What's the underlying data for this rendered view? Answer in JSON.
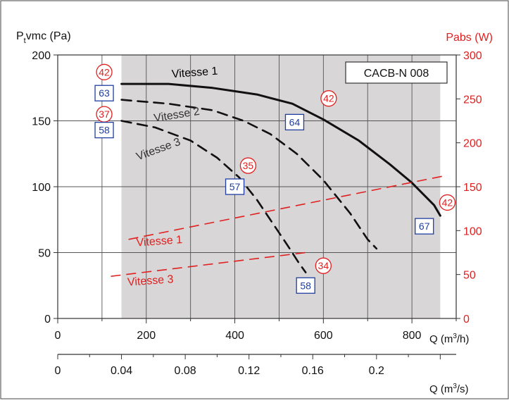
{
  "chart_data": {
    "type": "line",
    "title": "CACB-N 008",
    "left_axis": {
      "label_main": "P",
      "label_sub": "t",
      "label_rest": "vmc (Pa)",
      "range": [
        0,
        200
      ],
      "ticks": [
        "0",
        "50",
        "100",
        "150",
        "200"
      ]
    },
    "right_axis": {
      "label": "Pabs (W)",
      "range": [
        0,
        300
      ],
      "ticks": [
        "0",
        "50",
        "100",
        "150",
        "200",
        "250",
        "300"
      ],
      "color": "#e02020"
    },
    "x_axis_m3h": {
      "label_pre": "Q (m",
      "label_sup": "3",
      "label_post": "/h)",
      "range": [
        0,
        900
      ],
      "ticks": [
        "0",
        "200",
        "400",
        "600",
        "800"
      ],
      "values": [
        0,
        200,
        400,
        600,
        800
      ]
    },
    "x_axis_m3s": {
      "label_pre": "Q (m",
      "label_sup": "3",
      "label_post": "/s)",
      "ticks": [
        "0",
        "0.04",
        "0.08",
        "0.12",
        "0.16",
        "0.2"
      ],
      "values": [
        0,
        0.04,
        0.08,
        0.12,
        0.16,
        0.2
      ]
    },
    "shaded_range_m3h": [
      144,
      864
    ],
    "pressure_series": [
      {
        "name": "Vitesse 1",
        "style": "solid",
        "x": [
          144,
          250,
          350,
          450,
          530,
          600,
          680,
          750,
          800,
          850,
          864
        ],
        "y": [
          178,
          178,
          175,
          170,
          163,
          151,
          135,
          117,
          103,
          86,
          78
        ]
      },
      {
        "name": "Vitesse 2",
        "style": "dashed",
        "x": [
          144,
          250,
          350,
          420,
          480,
          540,
          600,
          660,
          700,
          720
        ],
        "y": [
          166,
          163,
          158,
          150,
          140,
          125,
          105,
          80,
          60,
          53
        ]
      },
      {
        "name": "Vitesse 3",
        "style": "dashed",
        "x": [
          144,
          220,
          300,
          360,
          410,
          450,
          490,
          520,
          545,
          560
        ],
        "y": [
          150,
          145,
          135,
          122,
          107,
          90,
          70,
          55,
          42,
          35
        ]
      }
    ],
    "power_series": [
      {
        "name": "Vitesse 1",
        "x": [
          160,
          870
        ],
        "y_w": [
          90,
          162
        ],
        "color": "#e02020"
      },
      {
        "name": "Vitesse 3",
        "x": [
          120,
          560
        ],
        "y_w": [
          48,
          75
        ],
        "color": "#e02020"
      }
    ],
    "series_labels": [
      {
        "text": "Vitesse 1",
        "x": 310,
        "y": 184,
        "color": "#000000",
        "rotate": -4,
        "size": 16
      },
      {
        "text": "Vitesse 2",
        "x": 270,
        "y": 152,
        "color": "#333333",
        "rotate": -9,
        "size": 16
      },
      {
        "text": "Vitesse 3",
        "x": 230,
        "y": 126,
        "color": "#333333",
        "rotate": -20,
        "size": 16
      },
      {
        "text": "Vitesse 1",
        "x": 230,
        "y": 56,
        "color": "#e02020",
        "rotate": -4,
        "size": 16
      },
      {
        "text": "Vitesse 3",
        "x": 210,
        "y": 26,
        "color": "#e02020",
        "rotate": -4,
        "size": 16
      }
    ],
    "power_annotations": [
      {
        "value": "42",
        "x": 105,
        "y": 187
      },
      {
        "value": "37",
        "x": 105,
        "y": 155
      },
      {
        "value": "42",
        "x": 612,
        "y": 167
      },
      {
        "value": "35",
        "x": 430,
        "y": 116
      },
      {
        "value": "42",
        "x": 880,
        "y": 88
      },
      {
        "value": "34",
        "x": 600,
        "y": 40
      }
    ],
    "noise_annotations": [
      {
        "value": "63",
        "x": 105,
        "y": 171
      },
      {
        "value": "58",
        "x": 105,
        "y": 143
      },
      {
        "value": "64",
        "x": 535,
        "y": 149
      },
      {
        "value": "57",
        "x": 400,
        "y": 100
      },
      {
        "value": "67",
        "x": 828,
        "y": 70
      },
      {
        "value": "58",
        "x": 560,
        "y": 25
      }
    ]
  }
}
